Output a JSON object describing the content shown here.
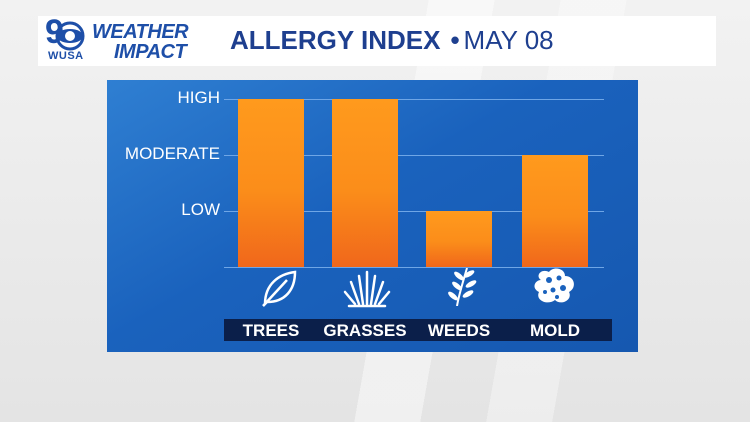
{
  "header": {
    "logo_number": "9",
    "logo_station": "WUSA",
    "brand_line1": "WEATHER",
    "brand_line2": "IMPACT",
    "title": "ALLERGY INDEX",
    "bullet": "•",
    "date": "MAY 08",
    "brand_color": "#1e4fa8"
  },
  "chart_data": {
    "type": "bar",
    "title": "ALLERGY INDEX",
    "categories": [
      "TREES",
      "GRASSES",
      "WEEDS",
      "MOLD"
    ],
    "values": [
      3,
      3,
      1,
      2
    ],
    "ylevels": [
      "LOW",
      "MODERATE",
      "HIGH"
    ],
    "ylim": [
      0,
      3
    ],
    "grid": true,
    "bar_color": "#fb8d1a",
    "panel_color": "#1a62bd",
    "icons": [
      "leaf-icon",
      "grass-icon",
      "weed-icon",
      "mold-icon"
    ]
  }
}
